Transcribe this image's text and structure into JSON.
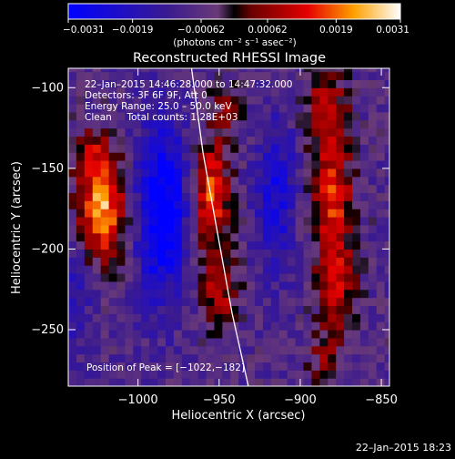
{
  "chart_data": {
    "type": "heatmap",
    "title": "Reconstructed RHESSI Image",
    "xlabel": "Heliocentric X (arcsec)",
    "ylabel": "Heliocentric Y (arcsec)",
    "xlim": [
      -1043,
      -845
    ],
    "ylim": [
      -285,
      -88
    ],
    "x_ticks": [
      -1000,
      -950,
      -900,
      -850
    ],
    "y_ticks": [
      -100,
      -150,
      -200,
      -250
    ],
    "x_tick_labels": [
      "−1000",
      "−950",
      "−900",
      "−850"
    ],
    "y_tick_labels": [
      "−100",
      "−150",
      "−200",
      "−250"
    ],
    "colorbar": {
      "min": -0.0031,
      "max": 0.0031,
      "ticks": [
        -0.0031,
        -0.0019,
        -0.00062,
        0.00062,
        0.0019,
        0.0031
      ],
      "tick_labels": [
        "−0.0031",
        "−0.0019",
        "−0.00062",
        "0.00062",
        "0.0019",
        "0.0031"
      ],
      "units": "(photons cm⁻² s⁻¹ asec⁻²)"
    },
    "annotations": [
      "22–Jan–2015 14:46:28.000 to 14:47:32.000",
      "Detectors: 3F 6F 9F, Att 0",
      "Energy Range: 25.0 – 50.0 keV",
      "Clean     Total counts: 1.28E+03"
    ],
    "peak_label": "Position of Peak = [−1022,−182]",
    "peak": [
      -1022,
      -182
    ],
    "sources": [
      {
        "x": -1022,
        "y": -175,
        "sx": 10,
        "sy": 22,
        "amp": 1.0
      },
      {
        "x": -1028,
        "y": -140,
        "sx": 8,
        "sy": 12,
        "amp": 0.4
      },
      {
        "x": -955,
        "y": -165,
        "sx": 8,
        "sy": 22,
        "amp": 0.8
      },
      {
        "x": -950,
        "y": -225,
        "sx": 8,
        "sy": 18,
        "amp": 0.55
      },
      {
        "x": -945,
        "y": -115,
        "sx": 8,
        "sy": 12,
        "amp": 0.35
      },
      {
        "x": -885,
        "y": -110,
        "sx": 9,
        "sy": 18,
        "amp": 0.55
      },
      {
        "x": -880,
        "y": -170,
        "sx": 9,
        "sy": 28,
        "amp": 0.72
      },
      {
        "x": -878,
        "y": -225,
        "sx": 8,
        "sy": 18,
        "amp": 0.6
      },
      {
        "x": -885,
        "y": -270,
        "sx": 8,
        "sy": 12,
        "amp": 0.35
      },
      {
        "x": -985,
        "y": -175,
        "sx": 11,
        "sy": 38,
        "amp": -0.9
      },
      {
        "x": -915,
        "y": -165,
        "sx": 9,
        "sy": 35,
        "amp": -0.5
      },
      {
        "x": -1040,
        "y": -230,
        "sx": 8,
        "sy": 25,
        "amp": -0.3
      }
    ],
    "limb_curve": [
      [
        -967,
        -88
      ],
      [
        -960,
        -140
      ],
      [
        -951,
        -190
      ],
      [
        -942,
        -240
      ],
      [
        -932,
        -285
      ]
    ]
  },
  "timestamp": "22–Jan–2015 18:23"
}
